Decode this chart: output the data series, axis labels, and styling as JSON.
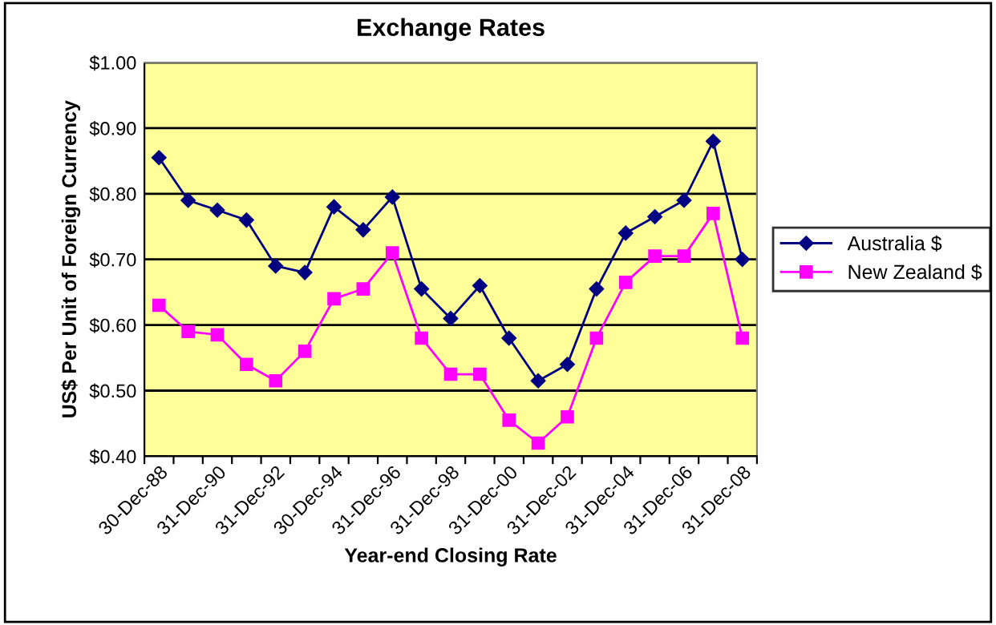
{
  "chart_data": {
    "type": "line",
    "title": "Exchange Rates",
    "xlabel": "Year-end Closing Rate",
    "ylabel": "US$ Per Unit of Foreign Currency",
    "categories": [
      "30-Dec-88",
      null,
      "31-Dec-90",
      null,
      "31-Dec-92",
      null,
      "30-Dec-94",
      null,
      "31-Dec-96",
      null,
      "31-Dec-98",
      null,
      "31-Dec-00",
      null,
      "31-Dec-02",
      null,
      "31-Dec-04",
      null,
      "31-Dec-06",
      null,
      "31-Dec-08"
    ],
    "series": [
      {
        "name": "Australia $",
        "color": "#000080",
        "marker": "diamond",
        "values": [
          0.855,
          0.79,
          0.775,
          0.76,
          0.69,
          0.68,
          0.78,
          0.745,
          0.795,
          0.655,
          0.61,
          0.66,
          0.58,
          0.515,
          0.54,
          0.655,
          0.74,
          0.765,
          0.79,
          0.88,
          0.7
        ]
      },
      {
        "name": "New Zealand $",
        "color": "#ff00ff",
        "marker": "square",
        "values": [
          0.63,
          0.59,
          0.585,
          0.54,
          0.515,
          0.56,
          0.64,
          0.655,
          0.71,
          0.58,
          0.525,
          0.525,
          0.455,
          0.42,
          0.46,
          0.58,
          0.665,
          0.705,
          0.705,
          0.77,
          0.58
        ]
      }
    ],
    "ylim": [
      0.4,
      1.0
    ],
    "yticks": [
      {
        "value": 0.4,
        "label": "$0.40"
      },
      {
        "value": 0.5,
        "label": "$0.50"
      },
      {
        "value": 0.6,
        "label": "$0.60"
      },
      {
        "value": 0.7,
        "label": "$0.70"
      },
      {
        "value": 0.8,
        "label": "$0.80"
      },
      {
        "value": 0.9,
        "label": "$0.90"
      },
      {
        "value": 1.0,
        "label": "$1.00"
      }
    ],
    "grid": "y",
    "legend": "right",
    "line_style": "solid"
  }
}
